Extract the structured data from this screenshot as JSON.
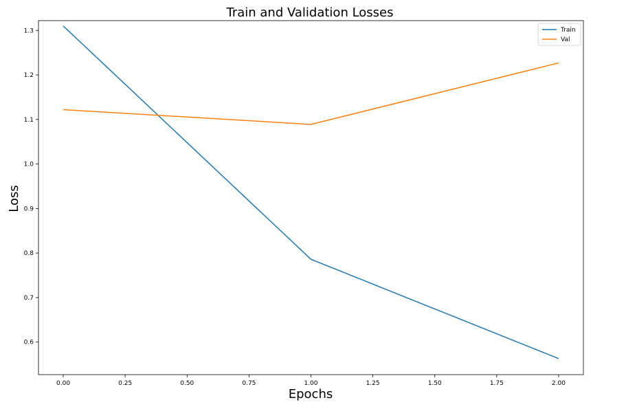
{
  "chart_data": {
    "type": "line",
    "title": "Train and Validation Losses",
    "xlabel": "Epochs",
    "ylabel": "Loss",
    "xlim": [
      -0.1,
      2.1
    ],
    "ylim": [
      0.527,
      1.322
    ],
    "xticks": [
      "0.00",
      "0.25",
      "0.50",
      "0.75",
      "1.00",
      "1.25",
      "1.50",
      "1.75",
      "2.00"
    ],
    "yticks": [
      "0.6",
      "0.7",
      "0.8",
      "0.9",
      "1.0",
      "1.1",
      "1.2",
      "1.3"
    ],
    "x": [
      0,
      1,
      2
    ],
    "series": [
      {
        "name": "Train",
        "color": "#1f77b4",
        "values": [
          1.31,
          0.786,
          0.563
        ]
      },
      {
        "name": "Val",
        "color": "#ff7f0e",
        "values": [
          1.122,
          1.089,
          1.227
        ]
      }
    ],
    "legend": "top-right",
    "grid": false
  }
}
